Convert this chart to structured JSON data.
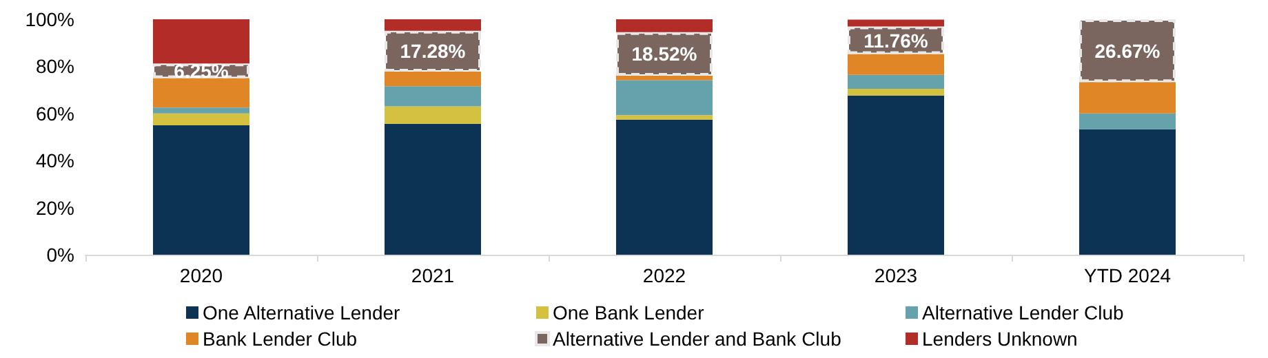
{
  "chart_data": {
    "type": "bar",
    "stacked": true,
    "categories": [
      "2020",
      "2021",
      "2022",
      "2023",
      "YTD 2024"
    ],
    "ylim": [
      0,
      100
    ],
    "yticks": [
      {
        "value": 0,
        "label": "0%"
      },
      {
        "value": 20,
        "label": "20%"
      },
      {
        "value": 40,
        "label": "40%"
      },
      {
        "value": 60,
        "label": "60%"
      },
      {
        "value": 80,
        "label": "80%"
      },
      {
        "value": 100,
        "label": "100%"
      }
    ],
    "grid": false,
    "legend": "bottom",
    "series": [
      {
        "name": "One Alternative Lender",
        "color": "#0c3354",
        "values": [
          55,
          55.6,
          57.4,
          67.6,
          53.3
        ]
      },
      {
        "name": "One Bank Lender",
        "color": "#d4c13f",
        "values": [
          5,
          7.4,
          1.9,
          2.9,
          0
        ]
      },
      {
        "name": "Alternative Lender Club",
        "color": "#64a3ab",
        "values": [
          2.5,
          8.6,
          14.8,
          5.9,
          6.7
        ]
      },
      {
        "name": "Bank Lender Club",
        "color": "#e08626",
        "values": [
          12.5,
          6.2,
          1.9,
          8.8,
          13.3
        ]
      },
      {
        "name": "Alternative Lender and Bank Club",
        "color": "#7a665e",
        "values": [
          6.25,
          17.28,
          18.52,
          11.76,
          26.67
        ],
        "value_labels": [
          "6.25%",
          "17.28%",
          "18.52%",
          "11.76%",
          "26.67%"
        ]
      },
      {
        "name": "Lenders Unknown",
        "color": "#b22d28",
        "values": [
          18.75,
          4.9,
          5.6,
          2.9,
          0
        ]
      }
    ]
  }
}
